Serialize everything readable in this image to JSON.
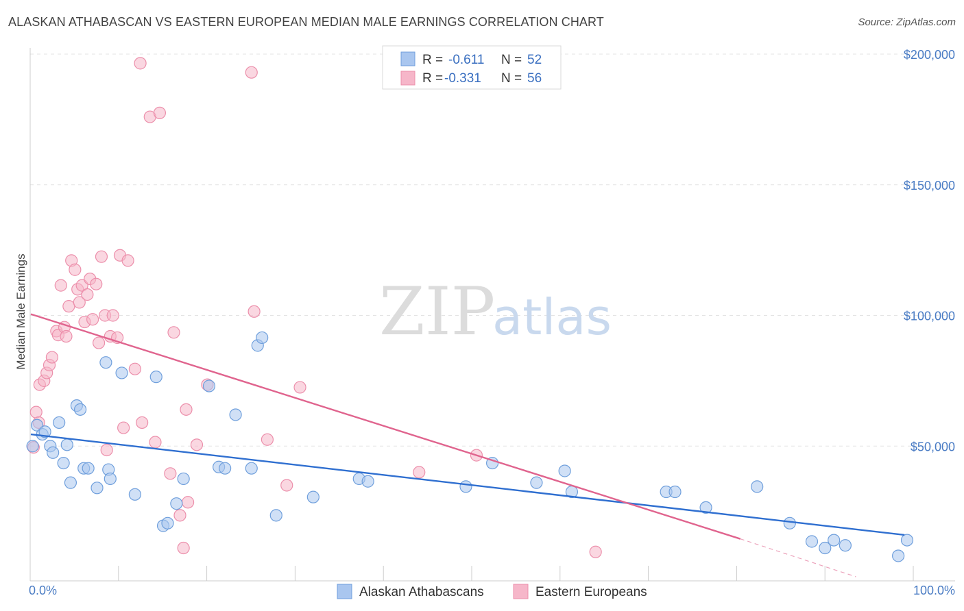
{
  "title": "ALASKAN ATHABASCAN VS EASTERN EUROPEAN MEDIAN MALE EARNINGS CORRELATION CHART",
  "source": "Source: ZipAtlas.com",
  "watermark": {
    "zip": "ZIP",
    "atlas": "atlas"
  },
  "legend": {
    "r_label": "R =",
    "n_label": "N =",
    "rows": [
      {
        "r": "-0.611",
        "n": "52"
      },
      {
        "r": "-0.331",
        "n": "56"
      }
    ]
  },
  "bottom_legend": [
    "Alaskan Athabascans",
    "Eastern Europeans"
  ],
  "colors": {
    "blue_fill": "#a9c6ef",
    "blue_stroke": "#6f9fdc",
    "blue_line": "#2f6fd0",
    "pink_fill": "#f6b6c9",
    "pink_stroke": "#ec8fab",
    "pink_line": "#e0648e",
    "axis_text": "#4a7cc4"
  },
  "chart_data": {
    "type": "scatter",
    "title": "ALASKAN ATHABASCAN VS EASTERN EUROPEAN MEDIAN MALE EARNINGS CORRELATION CHART",
    "xlabel": "",
    "ylabel": "Median Male Earnings",
    "xlim": [
      0,
      100
    ],
    "ylim": [
      0,
      205000
    ],
    "x_tick_labels": [
      "0.0%",
      "100.0%"
    ],
    "y_ticks": [
      50000,
      100000,
      150000,
      200000
    ],
    "y_tick_labels": [
      "$50,000",
      "$100,000",
      "$150,000",
      "$200,000"
    ],
    "grid": true,
    "legend_position": "top-center",
    "series": [
      {
        "name": "Alaskan Athabascans",
        "color": "#a9c6ef",
        "trend": {
          "x": [
            0,
            99
          ],
          "y": [
            54500,
            16000
          ]
        },
        "points": [
          [
            0.2,
            50000
          ],
          [
            0.7,
            58000
          ],
          [
            1.3,
            54500
          ],
          [
            1.6,
            55500
          ],
          [
            2.2,
            50000
          ],
          [
            2.5,
            47500
          ],
          [
            3.7,
            43500
          ],
          [
            4.1,
            50500
          ],
          [
            4.5,
            36000
          ],
          [
            3.2,
            59000
          ],
          [
            5.2,
            65500
          ],
          [
            5.6,
            64000
          ],
          [
            6.0,
            41500
          ],
          [
            6.5,
            41500
          ],
          [
            7.5,
            34000
          ],
          [
            8.5,
            82000
          ],
          [
            8.8,
            41000
          ],
          [
            9.0,
            37500
          ],
          [
            10.3,
            78000
          ],
          [
            11.8,
            31500
          ],
          [
            14.2,
            76500
          ],
          [
            15.0,
            19500
          ],
          [
            15.5,
            20500
          ],
          [
            16.5,
            28000
          ],
          [
            17.3,
            37500
          ],
          [
            20.2,
            73000
          ],
          [
            21.3,
            42000
          ],
          [
            22.0,
            41500
          ],
          [
            23.2,
            62000
          ],
          [
            25.0,
            41500
          ],
          [
            25.7,
            88500
          ],
          [
            26.2,
            91500
          ],
          [
            27.8,
            23500
          ],
          [
            32.0,
            30500
          ],
          [
            37.2,
            37500
          ],
          [
            38.2,
            36500
          ],
          [
            49.3,
            34500
          ],
          [
            52.3,
            43500
          ],
          [
            57.3,
            36000
          ],
          [
            60.5,
            40500
          ],
          [
            61.3,
            32500
          ],
          [
            72.0,
            32500
          ],
          [
            73.0,
            32500
          ],
          [
            76.5,
            26500
          ],
          [
            82.3,
            34500
          ],
          [
            86.0,
            20500
          ],
          [
            88.5,
            13500
          ],
          [
            90.0,
            11000
          ],
          [
            91.0,
            14000
          ],
          [
            92.3,
            12000
          ],
          [
            98.3,
            8000
          ],
          [
            99.3,
            14000
          ]
        ]
      },
      {
        "name": "Eastern Europeans",
        "color": "#f6b6c9",
        "trend": {
          "x": [
            0,
            80.4
          ],
          "y": [
            100500,
            14500
          ]
        },
        "trend_dashed": {
          "x": [
            80.4,
            93.5
          ],
          "y": [
            14500,
            0
          ]
        },
        "points": [
          [
            0.3,
            49500
          ],
          [
            0.6,
            63000
          ],
          [
            0.9,
            59000
          ],
          [
            1.0,
            73500
          ],
          [
            1.5,
            75000
          ],
          [
            1.8,
            78000
          ],
          [
            2.1,
            81000
          ],
          [
            2.4,
            84000
          ],
          [
            2.9,
            94000
          ],
          [
            3.1,
            92500
          ],
          [
            3.4,
            111500
          ],
          [
            3.8,
            95500
          ],
          [
            4.0,
            92000
          ],
          [
            4.3,
            103500
          ],
          [
            4.6,
            121000
          ],
          [
            5.0,
            117500
          ],
          [
            5.3,
            110000
          ],
          [
            5.5,
            105000
          ],
          [
            5.8,
            111500
          ],
          [
            6.1,
            97500
          ],
          [
            6.4,
            108000
          ],
          [
            6.7,
            114000
          ],
          [
            7.0,
            98500
          ],
          [
            7.4,
            112000
          ],
          [
            7.7,
            89500
          ],
          [
            8.0,
            122500
          ],
          [
            8.4,
            100000
          ],
          [
            8.6,
            48500
          ],
          [
            9.0,
            92000
          ],
          [
            9.3,
            100000
          ],
          [
            9.8,
            91500
          ],
          [
            10.1,
            123000
          ],
          [
            10.5,
            57000
          ],
          [
            11.0,
            121000
          ],
          [
            11.8,
            79500
          ],
          [
            12.6,
            59000
          ],
          [
            12.4,
            196500
          ],
          [
            13.5,
            176000
          ],
          [
            14.1,
            51500
          ],
          [
            14.6,
            177500
          ],
          [
            15.8,
            39500
          ],
          [
            16.2,
            93500
          ],
          [
            16.9,
            23500
          ],
          [
            17.3,
            11000
          ],
          [
            17.6,
            64000
          ],
          [
            17.8,
            28500
          ],
          [
            18.8,
            50500
          ],
          [
            20.0,
            73500
          ],
          [
            25.0,
            193000
          ],
          [
            25.3,
            101500
          ],
          [
            26.8,
            52500
          ],
          [
            29.0,
            35000
          ],
          [
            30.5,
            72500
          ],
          [
            44.0,
            40000
          ],
          [
            50.5,
            46500
          ],
          [
            64.0,
            9500
          ]
        ]
      }
    ]
  }
}
